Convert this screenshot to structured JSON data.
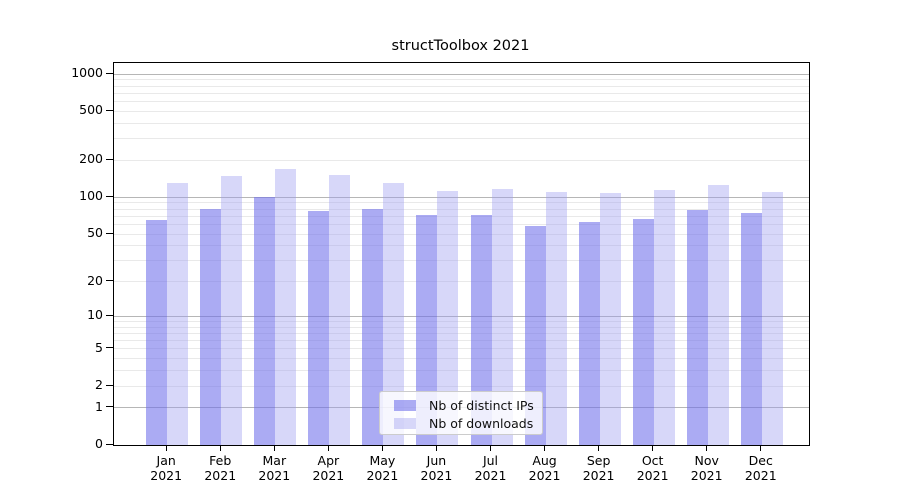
{
  "title": "structToolbox 2021",
  "colors": {
    "distinct_ips_bar": "rgba(110,110,235,0.58)",
    "downloads_bar": "rgba(155,155,240,0.40)",
    "major_gridline": "#b6b6b6",
    "minor_gridline": "#e9e9e9",
    "axis": "#000000"
  },
  "legend": {
    "items": [
      {
        "label": "Nb of distinct IPs",
        "series_key": "distinct_ips"
      },
      {
        "label": "Nb of downloads",
        "series_key": "downloads"
      }
    ]
  },
  "chart_data": {
    "type": "bar",
    "title": "structToolbox 2021",
    "categories": [
      "Jan 2021",
      "Feb 2021",
      "Mar 2021",
      "Apr 2021",
      "May 2021",
      "Jun 2021",
      "Jul 2021",
      "Aug 2021",
      "Sep 2021",
      "Oct 2021",
      "Nov 2021",
      "Dec 2021"
    ],
    "month_labels": [
      "Jan",
      "Feb",
      "Mar",
      "Apr",
      "May",
      "Jun",
      "Jul",
      "Aug",
      "Sep",
      "Oct",
      "Nov",
      "Dec"
    ],
    "year_label": "2021",
    "series": [
      {
        "name": "Nb of distinct IPs",
        "values": [
          65,
          80,
          100,
          78,
          81,
          72,
          72,
          58,
          63,
          66,
          79,
          75
        ]
      },
      {
        "name": "Nb of downloads",
        "values": [
          130,
          150,
          170,
          153,
          132,
          113,
          118,
          111,
          109,
          115,
          127,
          111
        ]
      }
    ],
    "xlabel": "",
    "ylabel": "",
    "y_ticks": [
      0,
      1,
      2,
      5,
      10,
      20,
      50,
      100,
      200,
      500,
      1000
    ],
    "y_scale": "log1p",
    "ylim": [
      0,
      1050
    ],
    "grid": "both",
    "legend_position": "lower-center-right"
  }
}
